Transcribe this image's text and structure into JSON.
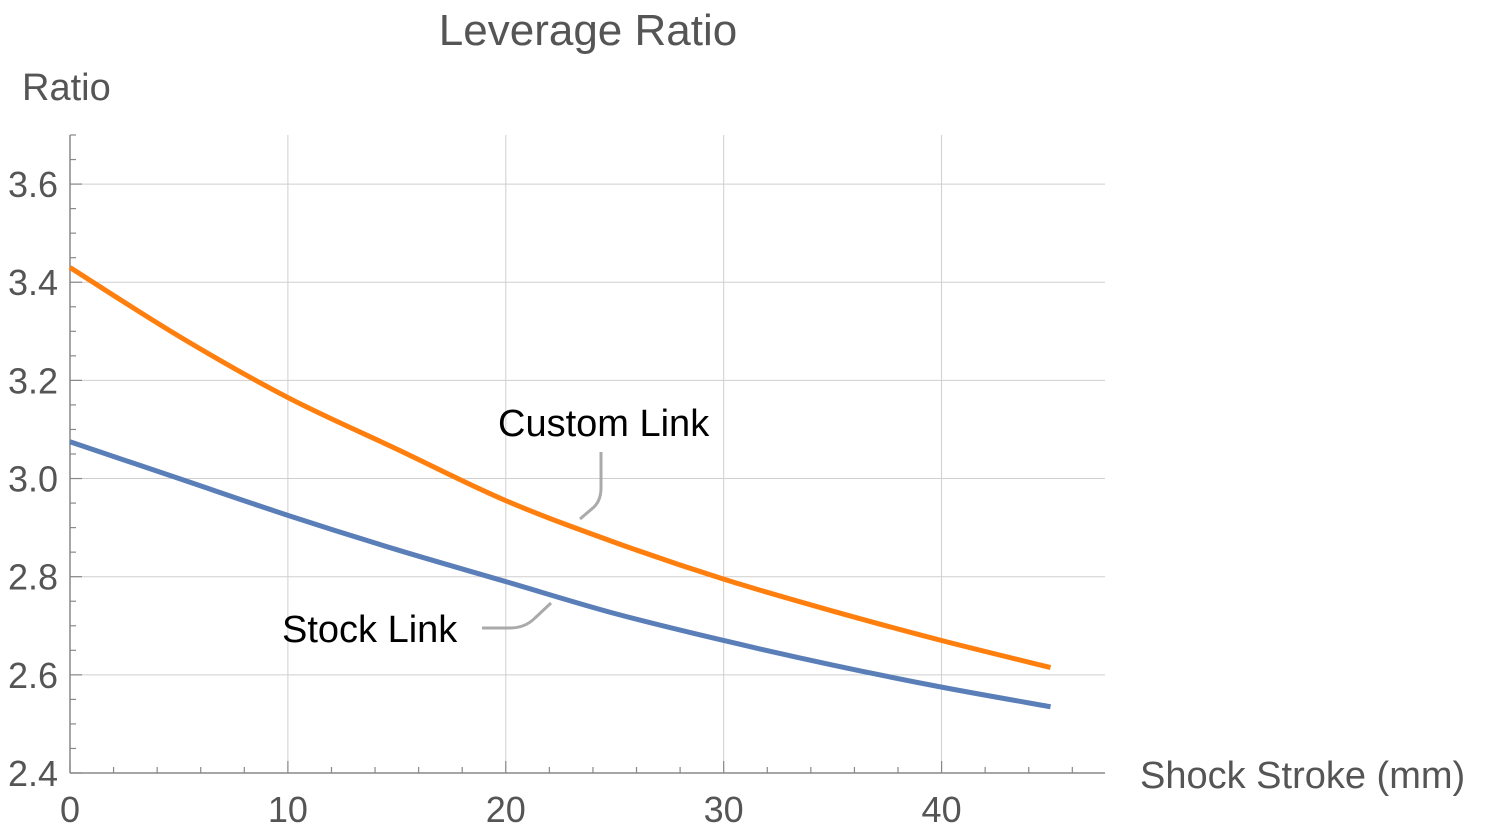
{
  "chart_data": {
    "type": "line",
    "title": "Leverage Ratio",
    "xlabel": "Shock Stroke (mm)",
    "ylabel": "Ratio",
    "xlim": [
      0,
      47.5
    ],
    "ylim": [
      2.4,
      3.7
    ],
    "x_ticks": [
      0,
      10,
      20,
      30,
      40
    ],
    "y_ticks": [
      2.4,
      2.6,
      2.8,
      3.0,
      3.2,
      3.4,
      3.6
    ],
    "x_tick_labels": [
      "0",
      "10",
      "20",
      "30",
      "40"
    ],
    "y_tick_labels": [
      "2.4",
      "2.6",
      "2.8",
      "3.0",
      "3.2",
      "3.4",
      "3.6"
    ],
    "grid": true,
    "series": [
      {
        "name": "Custom Link",
        "color": "#ff7f0e",
        "x": [
          0,
          5,
          10,
          15,
          20,
          25,
          30,
          35,
          40,
          45
        ],
        "y": [
          3.43,
          3.29,
          3.165,
          3.06,
          2.955,
          2.87,
          2.795,
          2.73,
          2.67,
          2.615
        ]
      },
      {
        "name": "Stock Link",
        "color": "#5a7fb8",
        "x": [
          0,
          5,
          10,
          15,
          20,
          25,
          30,
          35,
          40,
          45
        ],
        "y": [
          3.075,
          3.0,
          2.925,
          2.855,
          2.79,
          2.725,
          2.67,
          2.62,
          2.575,
          2.535
        ]
      }
    ]
  }
}
